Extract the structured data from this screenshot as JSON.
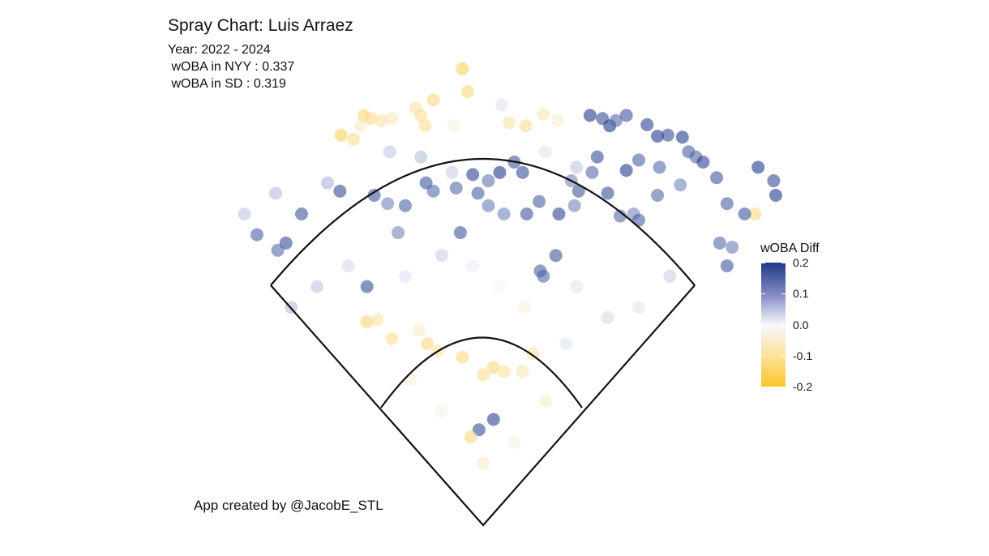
{
  "chart_data": {
    "type": "scatter",
    "title": "Spray Chart: Luis Arraez",
    "subtitle_lines": [
      "Year: 2022 - 2024",
      " wOBA in NYY : 0.337",
      " wOBA in SD : 0.319"
    ],
    "caption": "App created by @JacobE_STL",
    "legend": {
      "title": "wOBA Diff",
      "placement": "right",
      "ticks": [
        "0.2",
        "0.1",
        "0.0",
        "-0.1",
        "-0.2"
      ],
      "tick_values": [
        0.2,
        0.1,
        0.0,
        -0.1,
        -0.2
      ],
      "range": [
        -0.2,
        0.2
      ],
      "colors": {
        "high": "#1f3a8a",
        "mid": "#f7f7fb",
        "low": "#f9c52b"
      }
    },
    "grid": false,
    "axes_visible": false,
    "points": [
      {
        "x": -20,
        "y": 440,
        "c": -0.15
      },
      {
        "x": -15,
        "y": 418,
        "c": -0.12
      },
      {
        "x": 18,
        "y": 405,
        "c": 0.02
      },
      {
        "x": -60,
        "y": 395,
        "c": -0.1
      },
      {
        "x": -65,
        "y": 402,
        "c": -0.08
      },
      {
        "x": -48,
        "y": 410,
        "c": -0.12
      },
      {
        "x": -56,
        "y": 385,
        "c": -0.1
      },
      {
        "x": 58,
        "y": 396,
        "c": -0.07
      },
      {
        "x": 72,
        "y": 390,
        "c": -0.04
      },
      {
        "x": -28,
        "y": 385,
        "c": -0.03
      },
      {
        "x": 25,
        "y": 388,
        "c": -0.08
      },
      {
        "x": 41,
        "y": 385,
        "c": -0.1
      },
      {
        "x": -88,
        "y": 392,
        "c": -0.06
      },
      {
        "x": -115,
        "y": 395,
        "c": -0.12
      },
      {
        "x": -108,
        "y": 392,
        "c": -0.1
      },
      {
        "x": -98,
        "y": 390,
        "c": -0.08
      },
      {
        "x": -118,
        "y": 385,
        "c": -0.05
      },
      {
        "x": -125,
        "y": 372,
        "c": -0.1
      },
      {
        "x": -137,
        "y": 376,
        "c": -0.15
      },
      {
        "x": 103,
        "y": 395,
        "c": 0.2
      },
      {
        "x": 115,
        "y": 392,
        "c": 0.18
      },
      {
        "x": 122,
        "y": 385,
        "c": 0.2
      },
      {
        "x": 138,
        "y": 395,
        "c": 0.17
      },
      {
        "x": 128,
        "y": 390,
        "c": 0.15
      },
      {
        "x": 158,
        "y": 386,
        "c": 0.19
      },
      {
        "x": 168,
        "y": 375,
        "c": 0.2
      },
      {
        "x": 178,
        "y": 376,
        "c": 0.18
      },
      {
        "x": 192,
        "y": 374,
        "c": 0.2
      },
      {
        "x": 198,
        "y": 360,
        "c": 0.16
      },
      {
        "x": 205,
        "y": 355,
        "c": 0.15
      },
      {
        "x": 212,
        "y": 350,
        "c": 0.19
      },
      {
        "x": 225,
        "y": 335,
        "c": 0.17
      },
      {
        "x": 265,
        "y": 345,
        "c": 0.2
      },
      {
        "x": 280,
        "y": 332,
        "c": 0.18
      },
      {
        "x": 282,
        "y": 318,
        "c": 0.2
      },
      {
        "x": 262,
        "y": 300,
        "c": -0.12
      },
      {
        "x": 252,
        "y": 300,
        "c": 0.17
      },
      {
        "x": 235,
        "y": 310,
        "c": 0.16
      },
      {
        "x": 190,
        "y": 328,
        "c": 0.12
      },
      {
        "x": 170,
        "y": 345,
        "c": 0.15
      },
      {
        "x": 150,
        "y": 352,
        "c": 0.16
      },
      {
        "x": 138,
        "y": 342,
        "c": 0.2
      },
      {
        "x": 120,
        "y": 320,
        "c": 0.18
      },
      {
        "x": 92,
        "y": 322,
        "c": 0.17
      },
      {
        "x": 88,
        "y": 308,
        "c": 0.12
      },
      {
        "x": 73,
        "y": 300,
        "c": 0.19
      },
      {
        "x": 54,
        "y": 312,
        "c": 0.16
      },
      {
        "x": 38,
        "y": 340,
        "c": 0.18
      },
      {
        "x": 30,
        "y": 350,
        "c": 0.17
      },
      {
        "x": 16,
        "y": 340,
        "c": 0.2
      },
      {
        "x": 5,
        "y": 332,
        "c": 0.14
      },
      {
        "x": -10,
        "y": 338,
        "c": 0.19
      },
      {
        "x": -26,
        "y": 325,
        "c": 0.15
      },
      {
        "x": -48,
        "y": 322,
        "c": 0.15
      },
      {
        "x": -55,
        "y": 330,
        "c": 0.17
      },
      {
        "x": -75,
        "y": 308,
        "c": 0.16
      },
      {
        "x": -92,
        "y": 310,
        "c": 0.12
      },
      {
        "x": -105,
        "y": 318,
        "c": 0.17
      },
      {
        "x": -138,
        "y": 322,
        "c": 0.18
      },
      {
        "x": -175,
        "y": 300,
        "c": 0.17
      },
      {
        "x": -190,
        "y": 272,
        "c": 0.18
      },
      {
        "x": -198,
        "y": 265,
        "c": 0.15
      },
      {
        "x": -218,
        "y": 280,
        "c": 0.16
      },
      {
        "x": -112,
        "y": 230,
        "c": 0.18
      },
      {
        "x": -82,
        "y": 282,
        "c": 0.12
      },
      {
        "x": -22,
        "y": 282,
        "c": 0.17
      },
      {
        "x": -5,
        "y": 320,
        "c": 0.16
      },
      {
        "x": 5,
        "y": 308,
        "c": 0.13
      },
      {
        "x": 20,
        "y": 300,
        "c": 0.12
      },
      {
        "x": 70,
        "y": 260,
        "c": 0.17
      },
      {
        "x": 58,
        "y": 240,
        "c": 0.15
      },
      {
        "x": 55,
        "y": 245,
        "c": 0.16
      },
      {
        "x": 42,
        "y": 300,
        "c": 0.17
      },
      {
        "x": 85,
        "y": 332,
        "c": 0.12
      },
      {
        "x": 110,
        "y": 355,
        "c": 0.18
      },
      {
        "x": 105,
        "y": 340,
        "c": 0.15
      },
      {
        "x": 132,
        "y": 298,
        "c": 0.15
      },
      {
        "x": 145,
        "y": 300,
        "c": 0.12
      },
      {
        "x": 150,
        "y": 294,
        "c": 0.16
      },
      {
        "x": 168,
        "y": 318,
        "c": 0.15
      },
      {
        "x": 228,
        "y": 272,
        "c": 0.15
      },
      {
        "x": 240,
        "y": 268,
        "c": 0.13
      },
      {
        "x": 235,
        "y": 250,
        "c": 0.17
      },
      {
        "x": -112,
        "y": 196,
        "c": -0.13
      },
      {
        "x": -102,
        "y": 198,
        "c": -0.08
      },
      {
        "x": -88,
        "y": 180,
        "c": -0.1
      },
      {
        "x": -62,
        "y": 188,
        "c": -0.05
      },
      {
        "x": -54,
        "y": 175,
        "c": -0.12
      },
      {
        "x": -44,
        "y": 168,
        "c": -0.08
      },
      {
        "x": -20,
        "y": 162,
        "c": -0.12
      },
      {
        "x": 0,
        "y": 145,
        "c": -0.1
      },
      {
        "x": 10,
        "y": 152,
        "c": -0.12
      },
      {
        "x": 20,
        "y": 148,
        "c": -0.09
      },
      {
        "x": 38,
        "y": 148,
        "c": -0.07
      },
      {
        "x": 48,
        "y": 165,
        "c": -0.08
      },
      {
        "x": 80,
        "y": 175,
        "c": 0.02
      },
      {
        "x": -4,
        "y": 92,
        "c": 0.18
      },
      {
        "x": 10,
        "y": 102,
        "c": 0.19
      },
      {
        "x": -12,
        "y": 85,
        "c": -0.12
      },
      {
        "x": 0,
        "y": 60,
        "c": -0.05
      },
      {
        "x": -75,
        "y": 240,
        "c": 0.02
      },
      {
        "x": -40,
        "y": 260,
        "c": 0.04
      },
      {
        "x": -10,
        "y": 250,
        "c": 0.01
      },
      {
        "x": 15,
        "y": 230,
        "c": 0.0
      },
      {
        "x": 40,
        "y": 210,
        "c": -0.03
      },
      {
        "x": -130,
        "y": 250,
        "c": 0.03
      },
      {
        "x": -160,
        "y": 230,
        "c": 0.05
      },
      {
        "x": -185,
        "y": 210,
        "c": 0.06
      },
      {
        "x": 90,
        "y": 230,
        "c": 0.02
      },
      {
        "x": 120,
        "y": 200,
        "c": 0.03
      },
      {
        "x": 150,
        "y": 210,
        "c": 0.02
      },
      {
        "x": 180,
        "y": 240,
        "c": 0.04
      },
      {
        "x": -30,
        "y": 340,
        "c": 0.04
      },
      {
        "x": -60,
        "y": 355,
        "c": 0.06
      },
      {
        "x": -90,
        "y": 360,
        "c": 0.05
      },
      {
        "x": -150,
        "y": 330,
        "c": 0.07
      },
      {
        "x": -200,
        "y": 320,
        "c": 0.06
      },
      {
        "x": -230,
        "y": 300,
        "c": 0.05
      },
      {
        "x": 60,
        "y": 360,
        "c": 0.02
      },
      {
        "x": 90,
        "y": 345,
        "c": 0.05
      },
      {
        "x": -70,
        "y": 140,
        "c": -0.03
      },
      {
        "x": 60,
        "y": 120,
        "c": -0.04
      },
      {
        "x": -40,
        "y": 110,
        "c": -0.02
      },
      {
        "x": 30,
        "y": 80,
        "c": -0.03
      }
    ]
  }
}
